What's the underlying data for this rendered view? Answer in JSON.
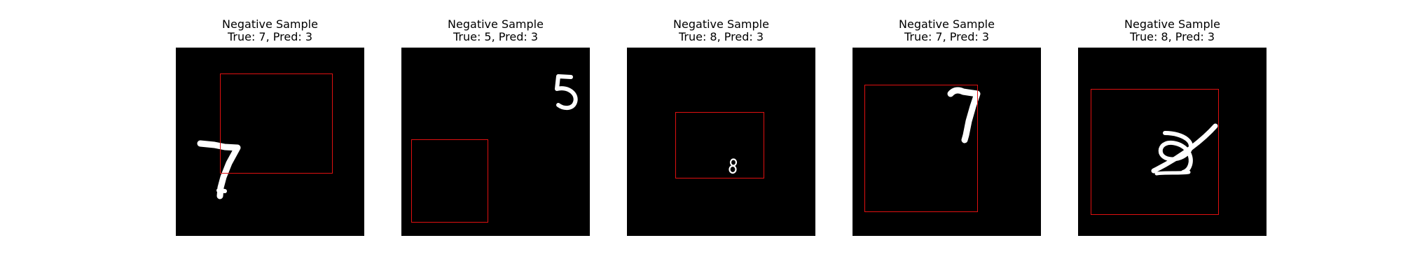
{
  "panels": [
    {
      "title": "Negative Sample",
      "subtitle": "True: 7, Pred: 3",
      "digit": "7"
    },
    {
      "title": "Negative Sample",
      "subtitle": "True: 5, Pred: 3",
      "digit": "5"
    },
    {
      "title": "Negative Sample",
      "subtitle": "True: 8, Pred: 3",
      "digit": "8"
    },
    {
      "title": "Negative Sample",
      "subtitle": "True: 7, Pred: 3",
      "digit": "7"
    },
    {
      "title": "Negative Sample",
      "subtitle": "True: 8, Pred: 3",
      "digit": "8"
    }
  ],
  "colors": {
    "background": "#000000",
    "digit": "#ffffff",
    "box": "#e01010"
  }
}
